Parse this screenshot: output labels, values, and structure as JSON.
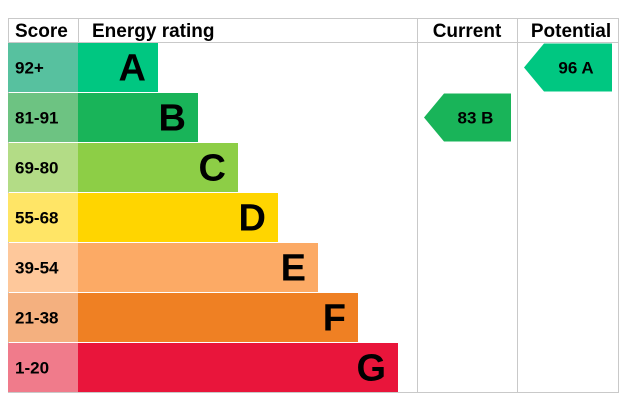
{
  "chart_data": {
    "type": "bar",
    "headers": {
      "score": "Score",
      "rating": "Energy rating",
      "current": "Current",
      "potential": "Potential"
    },
    "bands": [
      {
        "letter": "A",
        "range": "92+",
        "score_color": "#57c19f",
        "color": "#00c781"
      },
      {
        "letter": "B",
        "range": "81-91",
        "score_color": "#6dc382",
        "color": "#19b459"
      },
      {
        "letter": "C",
        "range": "69-80",
        "score_color": "#b3dc86",
        "color": "#8dce46"
      },
      {
        "letter": "D",
        "range": "55-68",
        "score_color": "#ffe566",
        "color": "#ffd500"
      },
      {
        "letter": "E",
        "range": "39-54",
        "score_color": "#fec89b",
        "color": "#fcaa65"
      },
      {
        "letter": "F",
        "range": "21-38",
        "score_color": "#f4b07f",
        "color": "#ef8023"
      },
      {
        "letter": "G",
        "range": "1-20",
        "score_color": "#f07b8b",
        "color": "#e9153b"
      }
    ],
    "current": {
      "value": 83,
      "band": "B",
      "label": "83 B"
    },
    "potential": {
      "value": 96,
      "band": "A",
      "label": "96 A"
    }
  }
}
